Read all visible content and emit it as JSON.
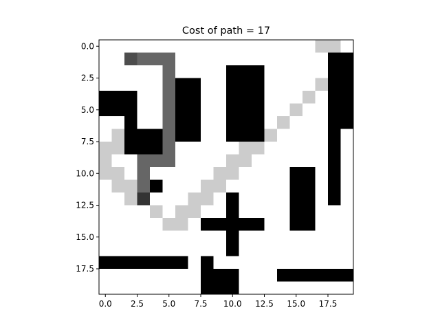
{
  "chart_data": {
    "type": "heatmap",
    "title": "Cost of path = 17",
    "xlabel": "",
    "ylabel": "",
    "grid": false,
    "colormap": "gray_r",
    "rows": 20,
    "cols": 20,
    "value_legend": {
      "0": "free",
      "1": "visited",
      "2": "path",
      "3": "end point",
      "4": "start point",
      "5": "obstacle"
    },
    "colors": {
      "0": "#ffffff",
      "1": "#cccccc",
      "2": "#666666",
      "3": "#4d4d4d",
      "4": "#333333",
      "5": "#000000"
    },
    "xticks": [
      "0.0",
      "2.5",
      "5.0",
      "7.5",
      "10.0",
      "12.5",
      "15.0",
      "17.5"
    ],
    "yticks": [
      "0.0",
      "2.5",
      "5.0",
      "7.5",
      "10.0",
      "12.5",
      "15.0",
      "17.5"
    ],
    "tick_values": [
      0,
      2.5,
      5,
      7.5,
      10,
      12.5,
      15,
      17.5
    ],
    "xlim": [
      -0.5,
      19.5
    ],
    "ylim": [
      19.5,
      -0.5
    ],
    "grid_values": [
      [
        0,
        0,
        0,
        0,
        0,
        0,
        0,
        0,
        0,
        0,
        0,
        0,
        0,
        0,
        0,
        0,
        0,
        1,
        1,
        0
      ],
      [
        0,
        0,
        3,
        2,
        2,
        2,
        0,
        0,
        0,
        0,
        0,
        0,
        0,
        0,
        0,
        0,
        0,
        0,
        5,
        5
      ],
      [
        0,
        0,
        0,
        0,
        0,
        2,
        0,
        0,
        0,
        0,
        5,
        5,
        5,
        0,
        0,
        0,
        0,
        0,
        5,
        5
      ],
      [
        0,
        0,
        0,
        0,
        0,
        2,
        5,
        5,
        0,
        0,
        5,
        5,
        5,
        0,
        0,
        0,
        0,
        1,
        5,
        5
      ],
      [
        5,
        5,
        5,
        0,
        0,
        2,
        5,
        5,
        0,
        0,
        5,
        5,
        5,
        0,
        0,
        0,
        1,
        0,
        5,
        5
      ],
      [
        5,
        5,
        5,
        0,
        0,
        2,
        5,
        5,
        0,
        0,
        5,
        5,
        5,
        0,
        0,
        1,
        0,
        0,
        5,
        5
      ],
      [
        0,
        0,
        5,
        0,
        0,
        2,
        5,
        5,
        0,
        0,
        5,
        5,
        5,
        0,
        1,
        0,
        0,
        0,
        5,
        5
      ],
      [
        0,
        1,
        5,
        5,
        5,
        2,
        5,
        5,
        0,
        0,
        5,
        5,
        5,
        1,
        0,
        0,
        0,
        0,
        5,
        0
      ],
      [
        1,
        1,
        5,
        5,
        5,
        2,
        0,
        0,
        0,
        0,
        0,
        1,
        1,
        0,
        0,
        0,
        0,
        0,
        5,
        0
      ],
      [
        1,
        0,
        0,
        2,
        2,
        2,
        0,
        0,
        0,
        0,
        1,
        1,
        0,
        0,
        0,
        0,
        0,
        0,
        5,
        0
      ],
      [
        1,
        1,
        0,
        2,
        0,
        0,
        0,
        0,
        0,
        1,
        1,
        0,
        0,
        0,
        0,
        5,
        5,
        0,
        5,
        0
      ],
      [
        0,
        1,
        1,
        2,
        5,
        0,
        0,
        0,
        1,
        1,
        0,
        0,
        0,
        0,
        0,
        5,
        5,
        0,
        5,
        0
      ],
      [
        0,
        0,
        1,
        4,
        0,
        0,
        0,
        1,
        1,
        0,
        5,
        0,
        0,
        0,
        0,
        5,
        5,
        0,
        5,
        0
      ],
      [
        0,
        0,
        0,
        0,
        1,
        0,
        1,
        1,
        0,
        0,
        5,
        0,
        0,
        0,
        0,
        5,
        5,
        0,
        0,
        0
      ],
      [
        0,
        0,
        0,
        0,
        0,
        1,
        1,
        0,
        5,
        5,
        5,
        5,
        5,
        0,
        0,
        5,
        5,
        0,
        0,
        0
      ],
      [
        0,
        0,
        0,
        0,
        0,
        0,
        0,
        0,
        0,
        0,
        5,
        0,
        0,
        0,
        0,
        0,
        0,
        0,
        0,
        0
      ],
      [
        0,
        0,
        0,
        0,
        0,
        0,
        0,
        0,
        0,
        0,
        5,
        0,
        0,
        0,
        0,
        0,
        0,
        0,
        0,
        0
      ],
      [
        5,
        5,
        5,
        5,
        5,
        5,
        5,
        0,
        5,
        0,
        0,
        0,
        0,
        0,
        0,
        0,
        0,
        0,
        0,
        0
      ],
      [
        0,
        0,
        0,
        0,
        0,
        0,
        0,
        0,
        5,
        5,
        5,
        0,
        0,
        0,
        5,
        5,
        5,
        5,
        5,
        5
      ],
      [
        0,
        0,
        0,
        0,
        0,
        0,
        0,
        0,
        5,
        5,
        5,
        0,
        0,
        0,
        0,
        0,
        0,
        0,
        0,
        0
      ]
    ]
  }
}
